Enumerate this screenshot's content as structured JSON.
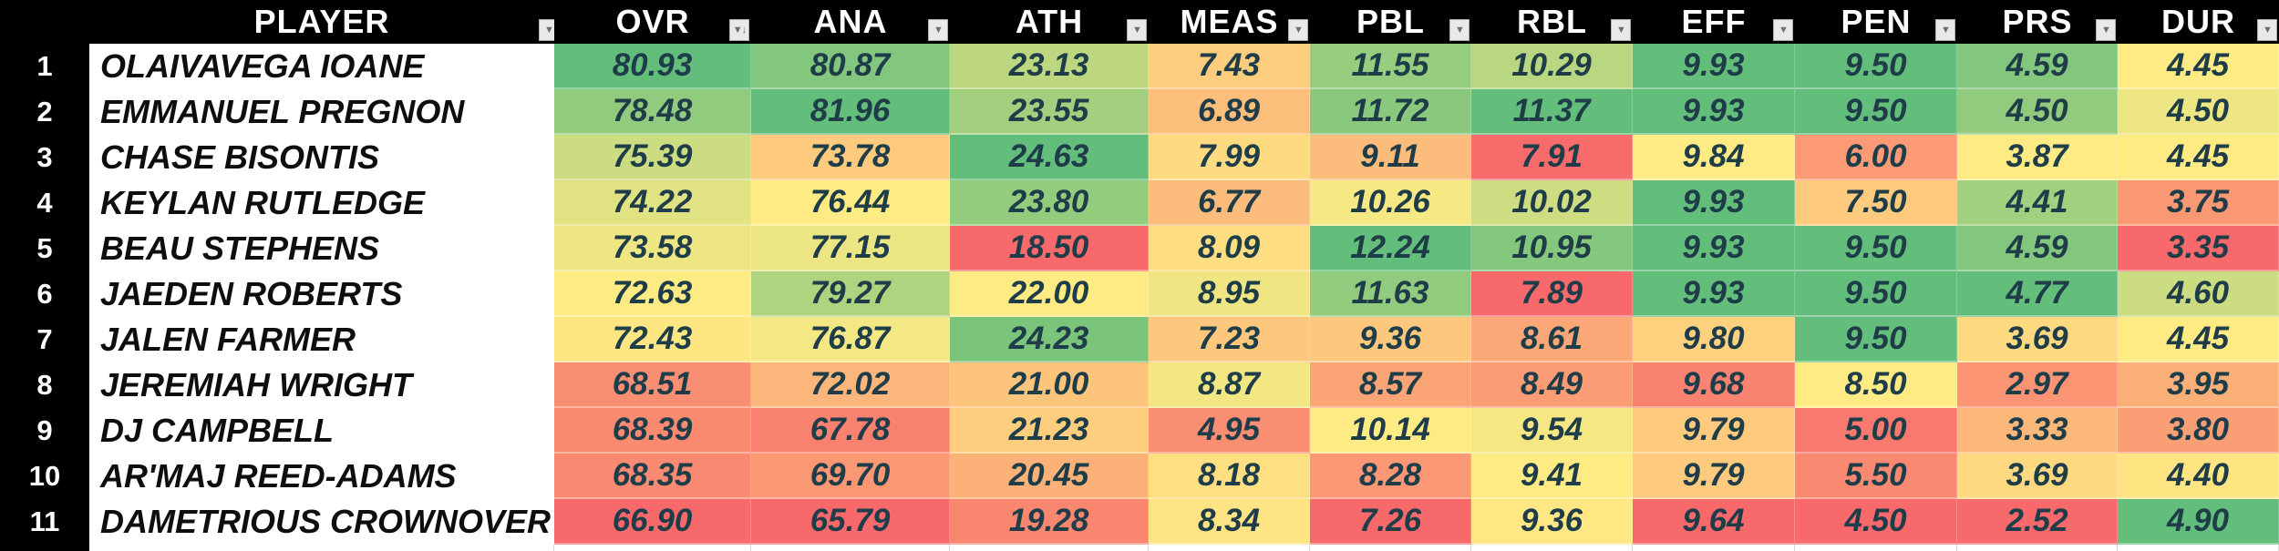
{
  "icons": {
    "filter": "▼",
    "filter_sort_desc": "▼↓"
  },
  "meta": {
    "header_bg": "#000000",
    "header_text": "#FFFFFF",
    "row_number_bg": "#000000",
    "row_number_text": "#FFFFFF",
    "player_cell_bg": "#FFFFFF",
    "player_text": "#0E0E0E",
    "value_text": "#1F3D49",
    "heatmap_red": "#F8696B",
    "heatmap_yellow": "#FFEB84",
    "heatmap_green": "#63BE7B"
  },
  "table": {
    "columns": [
      {
        "key": "player",
        "label": "PLAYER",
        "icon": "filter"
      },
      {
        "key": "ovr",
        "label": "OVR",
        "icon": "filter_sort_desc"
      },
      {
        "key": "ana",
        "label": "ANA",
        "icon": "filter"
      },
      {
        "key": "ath",
        "label": "ATH",
        "icon": "filter"
      },
      {
        "key": "meas",
        "label": "MEAS",
        "icon": "filter"
      },
      {
        "key": "pbl",
        "label": "PBL",
        "icon": "filter"
      },
      {
        "key": "rbl",
        "label": "RBL",
        "icon": "filter"
      },
      {
        "key": "eff",
        "label": "EFF",
        "icon": "filter"
      },
      {
        "key": "pen",
        "label": "PEN",
        "icon": "filter"
      },
      {
        "key": "prs",
        "label": "PRS",
        "icon": "filter"
      },
      {
        "key": "dur",
        "label": "DUR",
        "icon": "filter"
      }
    ],
    "rows": [
      {
        "rank": "1",
        "player": "OLAIVAVEGA IOANE",
        "cells": [
          {
            "v": "80.93",
            "bg": "#63BE7B"
          },
          {
            "v": "80.87",
            "bg": "#82C77D"
          },
          {
            "v": "23.13",
            "bg": "#BCD780"
          },
          {
            "v": "7.43",
            "bg": "#FDCD7E"
          },
          {
            "v": "11.55",
            "bg": "#96CD7E"
          },
          {
            "v": "10.29",
            "bg": "#B9D680"
          },
          {
            "v": "9.93",
            "bg": "#63BE7B"
          },
          {
            "v": "9.50",
            "bg": "#63BE7B"
          },
          {
            "v": "4.59",
            "bg": "#82C77D"
          },
          {
            "v": "4.45",
            "bg": "#FFEB84"
          }
        ]
      },
      {
        "rank": "2",
        "player": "EMMANUEL PREGNON",
        "cells": [
          {
            "v": "78.48",
            "bg": "#91CB7E"
          },
          {
            "v": "81.96",
            "bg": "#63BE7B"
          },
          {
            "v": "23.55",
            "bg": "#A3D07E"
          },
          {
            "v": "6.89",
            "bg": "#FCBF7B"
          },
          {
            "v": "11.72",
            "bg": "#8AC97D"
          },
          {
            "v": "11.37",
            "bg": "#63BE7B"
          },
          {
            "v": "9.93",
            "bg": "#63BE7B"
          },
          {
            "v": "9.50",
            "bg": "#63BE7B"
          },
          {
            "v": "4.50",
            "bg": "#92CB7E"
          },
          {
            "v": "4.50",
            "bg": "#EDE683"
          }
        ]
      },
      {
        "rank": "3",
        "player": "CHASE BISONTIS",
        "cells": [
          {
            "v": "75.39",
            "bg": "#CBDC81"
          },
          {
            "v": "73.78",
            "bg": "#FDCA7E"
          },
          {
            "v": "24.63",
            "bg": "#63BE7B"
          },
          {
            "v": "7.99",
            "bg": "#FEDB81"
          },
          {
            "v": "9.11",
            "bg": "#FCBC7B"
          },
          {
            "v": "7.91",
            "bg": "#F86B6B"
          },
          {
            "v": "9.84",
            "bg": "#FFEB84"
          },
          {
            "v": "6.00",
            "bg": "#FB9A74"
          },
          {
            "v": "3.87",
            "bg": "#FFEB84"
          },
          {
            "v": "4.45",
            "bg": "#FFEB84"
          }
        ]
      },
      {
        "rank": "4",
        "player": "KEYLAN RUTLEDGE",
        "cells": [
          {
            "v": "74.22",
            "bg": "#E1E282"
          },
          {
            "v": "76.44",
            "bg": "#FFEB84"
          },
          {
            "v": "23.80",
            "bg": "#94CC7D"
          },
          {
            "v": "6.77",
            "bg": "#FCBC7B"
          },
          {
            "v": "10.26",
            "bg": "#F6E883"
          },
          {
            "v": "10.02",
            "bg": "#CEDD81"
          },
          {
            "v": "9.93",
            "bg": "#63BE7B"
          },
          {
            "v": "7.50",
            "bg": "#FDCA7E"
          },
          {
            "v": "4.41",
            "bg": "#A1D07F"
          },
          {
            "v": "3.75",
            "bg": "#FA9874"
          }
        ]
      },
      {
        "rank": "5",
        "player": "BEAU STEPHENS",
        "cells": [
          {
            "v": "73.58",
            "bg": "#EDE683"
          },
          {
            "v": "77.15",
            "bg": "#EBE583"
          },
          {
            "v": "18.50",
            "bg": "#F8696B"
          },
          {
            "v": "8.09",
            "bg": "#FEDE81"
          },
          {
            "v": "12.24",
            "bg": "#63BE7B"
          },
          {
            "v": "10.95",
            "bg": "#84C87D"
          },
          {
            "v": "9.93",
            "bg": "#63BE7B"
          },
          {
            "v": "9.50",
            "bg": "#63BE7B"
          },
          {
            "v": "4.59",
            "bg": "#82C77D"
          },
          {
            "v": "3.35",
            "bg": "#F8696B"
          }
        ]
      },
      {
        "rank": "6",
        "player": "JAEDEN ROBERTS",
        "cells": [
          {
            "v": "72.63",
            "bg": "#FFEB84"
          },
          {
            "v": "79.27",
            "bg": "#AFD47F"
          },
          {
            "v": "22.00",
            "bg": "#FFEB84"
          },
          {
            "v": "8.95",
            "bg": "#EFE683"
          },
          {
            "v": "11.63",
            "bg": "#90CB7E"
          },
          {
            "v": "7.89",
            "bg": "#F8696B"
          },
          {
            "v": "9.93",
            "bg": "#63BE7B"
          },
          {
            "v": "9.50",
            "bg": "#63BE7B"
          },
          {
            "v": "4.77",
            "bg": "#63BE7B"
          },
          {
            "v": "4.60",
            "bg": "#CBDC81"
          }
        ]
      },
      {
        "rank": "7",
        "player": "JALEN FARMER",
        "cells": [
          {
            "v": "72.43",
            "bg": "#FEE683"
          },
          {
            "v": "76.87",
            "bg": "#F3E883"
          },
          {
            "v": "24.23",
            "bg": "#7AC47C"
          },
          {
            "v": "7.23",
            "bg": "#FDC87D"
          },
          {
            "v": "9.36",
            "bg": "#FDC87D"
          },
          {
            "v": "8.61",
            "bg": "#FBA777"
          },
          {
            "v": "9.80",
            "bg": "#FED17F"
          },
          {
            "v": "9.50",
            "bg": "#63BE7B"
          },
          {
            "v": "3.69",
            "bg": "#FED980"
          },
          {
            "v": "4.45",
            "bg": "#FFEB84"
          }
        ]
      },
      {
        "rank": "8",
        "player": "JEREMIAH WRIGHT",
        "cells": [
          {
            "v": "68.51",
            "bg": "#FA8E72"
          },
          {
            "v": "72.02",
            "bg": "#FCB57A"
          },
          {
            "v": "21.00",
            "bg": "#FDC57C"
          },
          {
            "v": "8.87",
            "bg": "#F3E783"
          },
          {
            "v": "8.57",
            "bg": "#FBA476"
          },
          {
            "v": "8.49",
            "bg": "#FB9C75"
          },
          {
            "v": "9.68",
            "bg": "#F98370"
          },
          {
            "v": "8.50",
            "bg": "#FFEB84"
          },
          {
            "v": "2.97",
            "bg": "#FA9473"
          },
          {
            "v": "3.95",
            "bg": "#FBAF78"
          }
        ]
      },
      {
        "rank": "9",
        "player": "DJ CAMPBELL",
        "cells": [
          {
            "v": "68.39",
            "bg": "#FA8B71"
          },
          {
            "v": "67.78",
            "bg": "#F9816F"
          },
          {
            "v": "21.23",
            "bg": "#FDCE7E"
          },
          {
            "v": "4.95",
            "bg": "#FA8E72"
          },
          {
            "v": "10.14",
            "bg": "#FFEB84"
          },
          {
            "v": "9.54",
            "bg": "#F5E883"
          },
          {
            "v": "9.79",
            "bg": "#FDCA7E"
          },
          {
            "v": "5.00",
            "bg": "#F9796E"
          },
          {
            "v": "3.33",
            "bg": "#FCB77A"
          },
          {
            "v": "3.80",
            "bg": "#FA9E75"
          }
        ]
      },
      {
        "rank": "10",
        "player": "AR'MAJ REED-ADAMS",
        "cells": [
          {
            "v": "68.35",
            "bg": "#FA8A71"
          },
          {
            "v": "69.70",
            "bg": "#FA9874"
          },
          {
            "v": "20.45",
            "bg": "#FBB178"
          },
          {
            "v": "8.18",
            "bg": "#FEE082"
          },
          {
            "v": "8.28",
            "bg": "#FA9774"
          },
          {
            "v": "9.41",
            "bg": "#FFEB84"
          },
          {
            "v": "9.79",
            "bg": "#FDCA7E"
          },
          {
            "v": "5.50",
            "bg": "#FA8971"
          },
          {
            "v": "3.69",
            "bg": "#FED980"
          },
          {
            "v": "4.40",
            "bg": "#FEE582"
          }
        ]
      },
      {
        "rank": "11",
        "player": "DAMETRIOUS CROWNOVER",
        "cells": [
          {
            "v": "66.90",
            "bg": "#F8696B"
          },
          {
            "v": "65.79",
            "bg": "#F8696B"
          },
          {
            "v": "19.28",
            "bg": "#F9866F"
          },
          {
            "v": "8.34",
            "bg": "#FFE483"
          },
          {
            "v": "7.26",
            "bg": "#F8696B"
          },
          {
            "v": "9.36",
            "bg": "#FFE783"
          },
          {
            "v": "9.64",
            "bg": "#F8696B"
          },
          {
            "v": "4.50",
            "bg": "#F8696B"
          },
          {
            "v": "2.52",
            "bg": "#F8696B"
          },
          {
            "v": "4.90",
            "bg": "#63BE7B"
          }
        ]
      }
    ]
  }
}
